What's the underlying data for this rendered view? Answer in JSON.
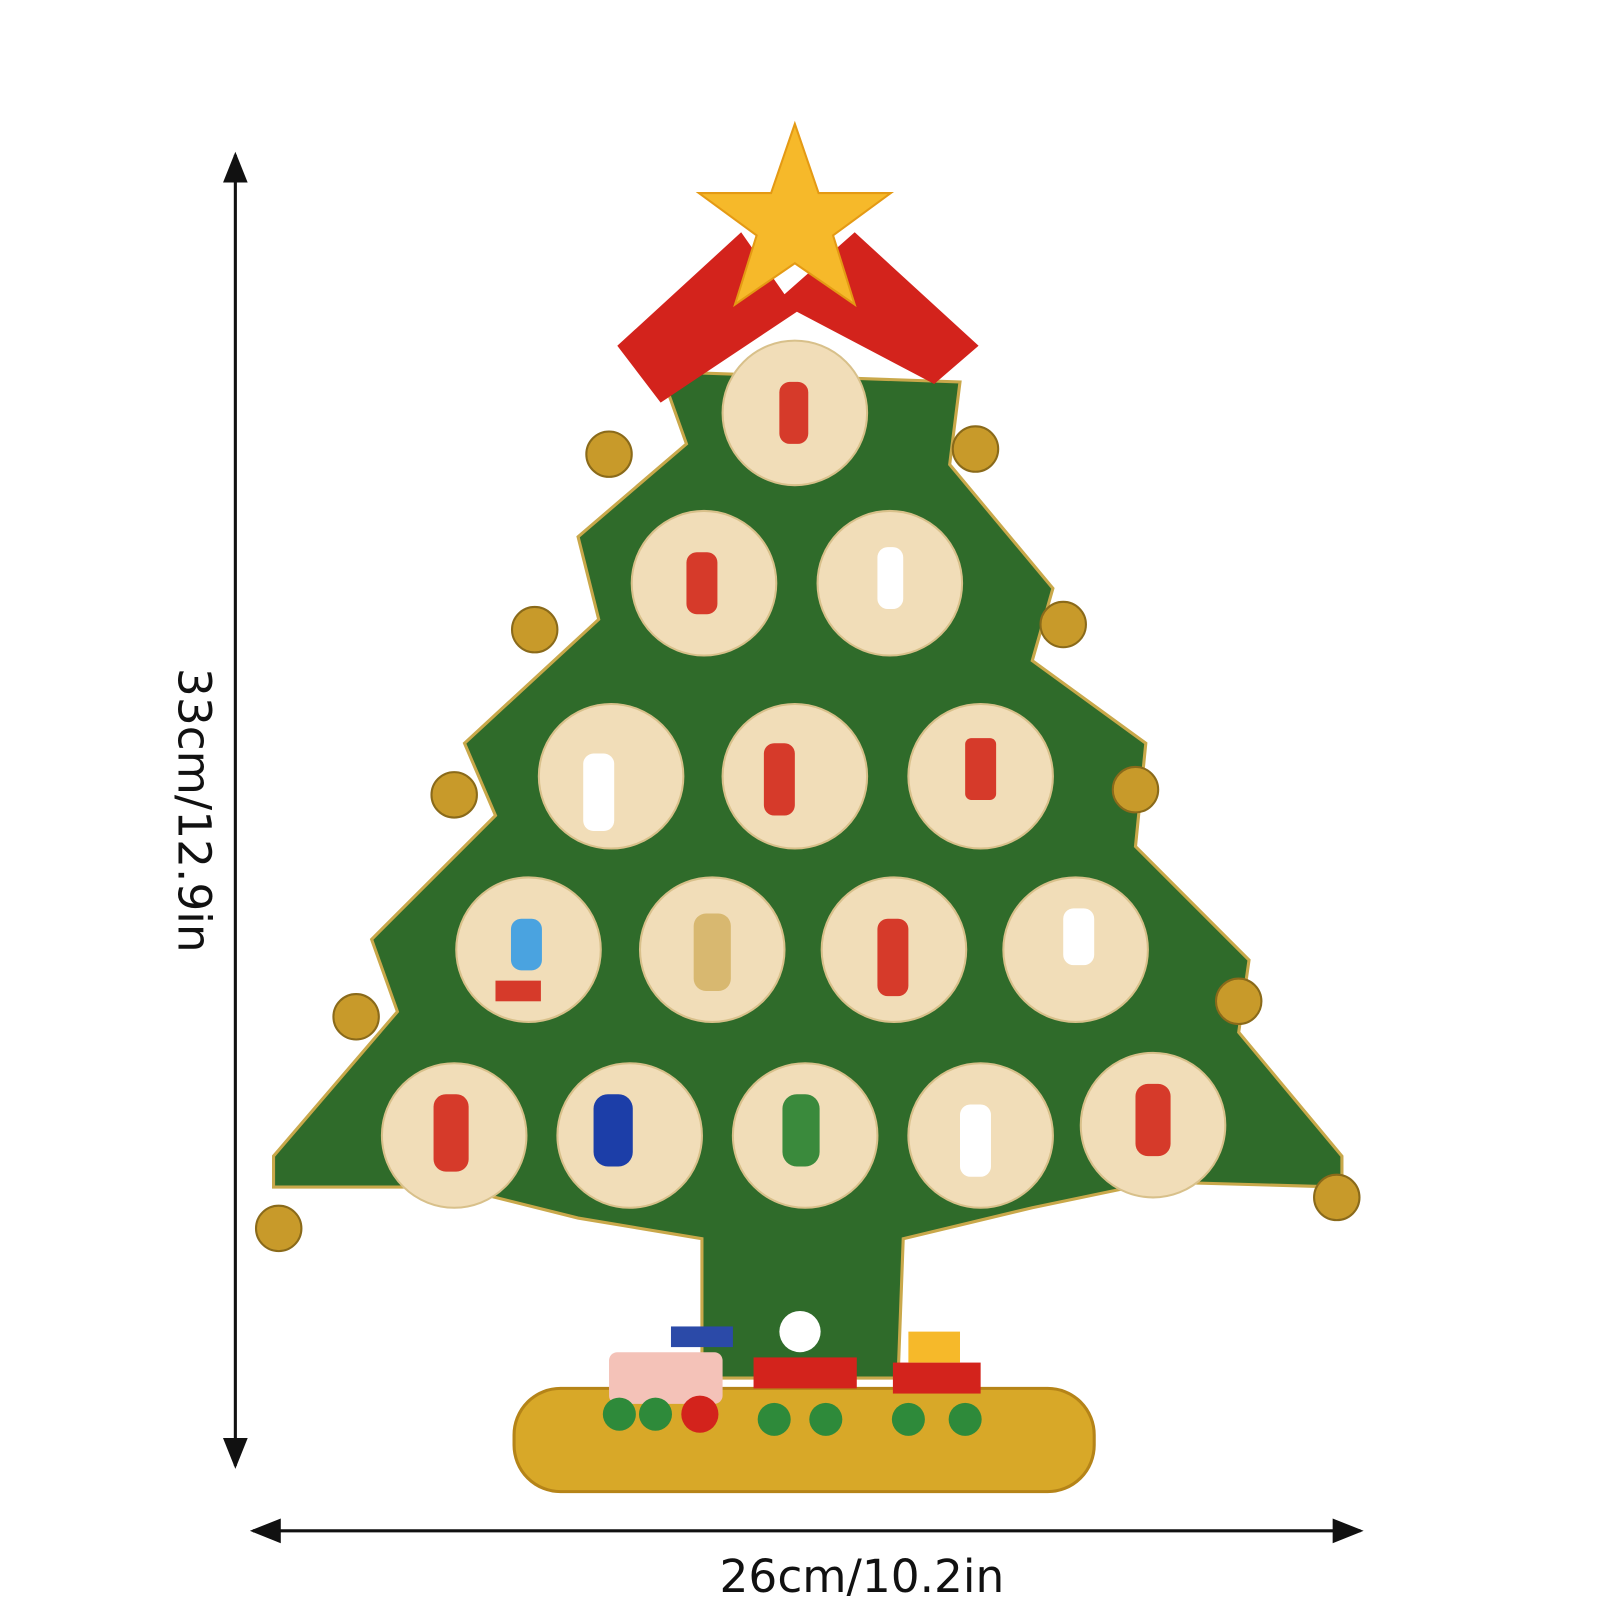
{
  "dimensions": {
    "height": "33cm/12.9in",
    "width": "26cm/10.2in"
  }
}
